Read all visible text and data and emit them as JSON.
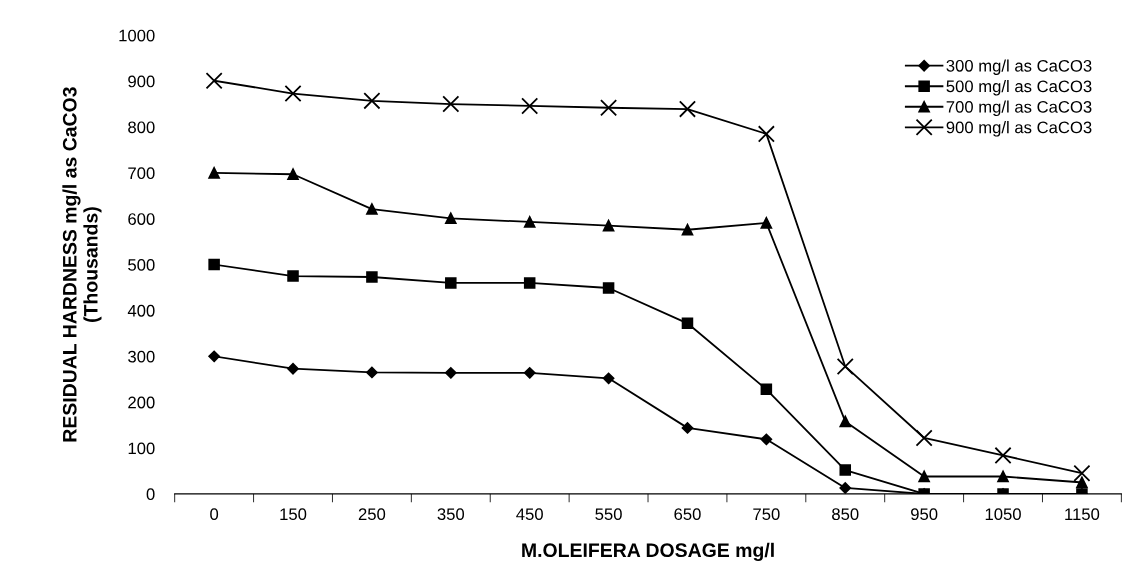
{
  "chart_data": {
    "type": "line",
    "xlabel": "M.OLEIFERA DOSAGE mg/l",
    "ylabel": "RESIDUAL HARDNESS mg/l as CaCO3\n(Thousands)",
    "categories": [
      "0",
      "150",
      "250",
      "350",
      "450",
      "550",
      "650",
      "750",
      "850",
      "950",
      "1050",
      "1150"
    ],
    "series": [
      {
        "name": "300 mg/l as CaCO3",
        "color": "#000000",
        "marker": "diamond",
        "values": [
          300,
          273,
          265,
          264,
          264,
          252,
          144,
          119,
          13,
          0,
          0,
          0
        ]
      },
      {
        "name": "500 mg/l as CaCO3",
        "color": "#000000",
        "marker": "square",
        "values": [
          500,
          475,
          473,
          460,
          460,
          449,
          372,
          228,
          52,
          0,
          0,
          0
        ]
      },
      {
        "name": "700 mg/l as CaCO3",
        "color": "#000000",
        "marker": "triangle",
        "values": [
          700,
          697,
          621,
          601,
          593,
          585,
          576,
          591,
          158,
          38,
          38,
          25
        ]
      },
      {
        "name": "900 mg/l as CaCO3",
        "color": "#000000",
        "marker": "cross",
        "values": [
          901,
          873,
          857,
          850,
          846,
          842,
          839,
          785,
          278,
          122,
          84,
          45
        ]
      }
    ],
    "ylim": [
      0,
      1000
    ],
    "yticks": [
      0,
      100,
      200,
      300,
      400,
      500,
      600,
      700,
      800,
      900,
      1000
    ],
    "grid": false,
    "legend": "top right",
    "line_style": "solid"
  }
}
